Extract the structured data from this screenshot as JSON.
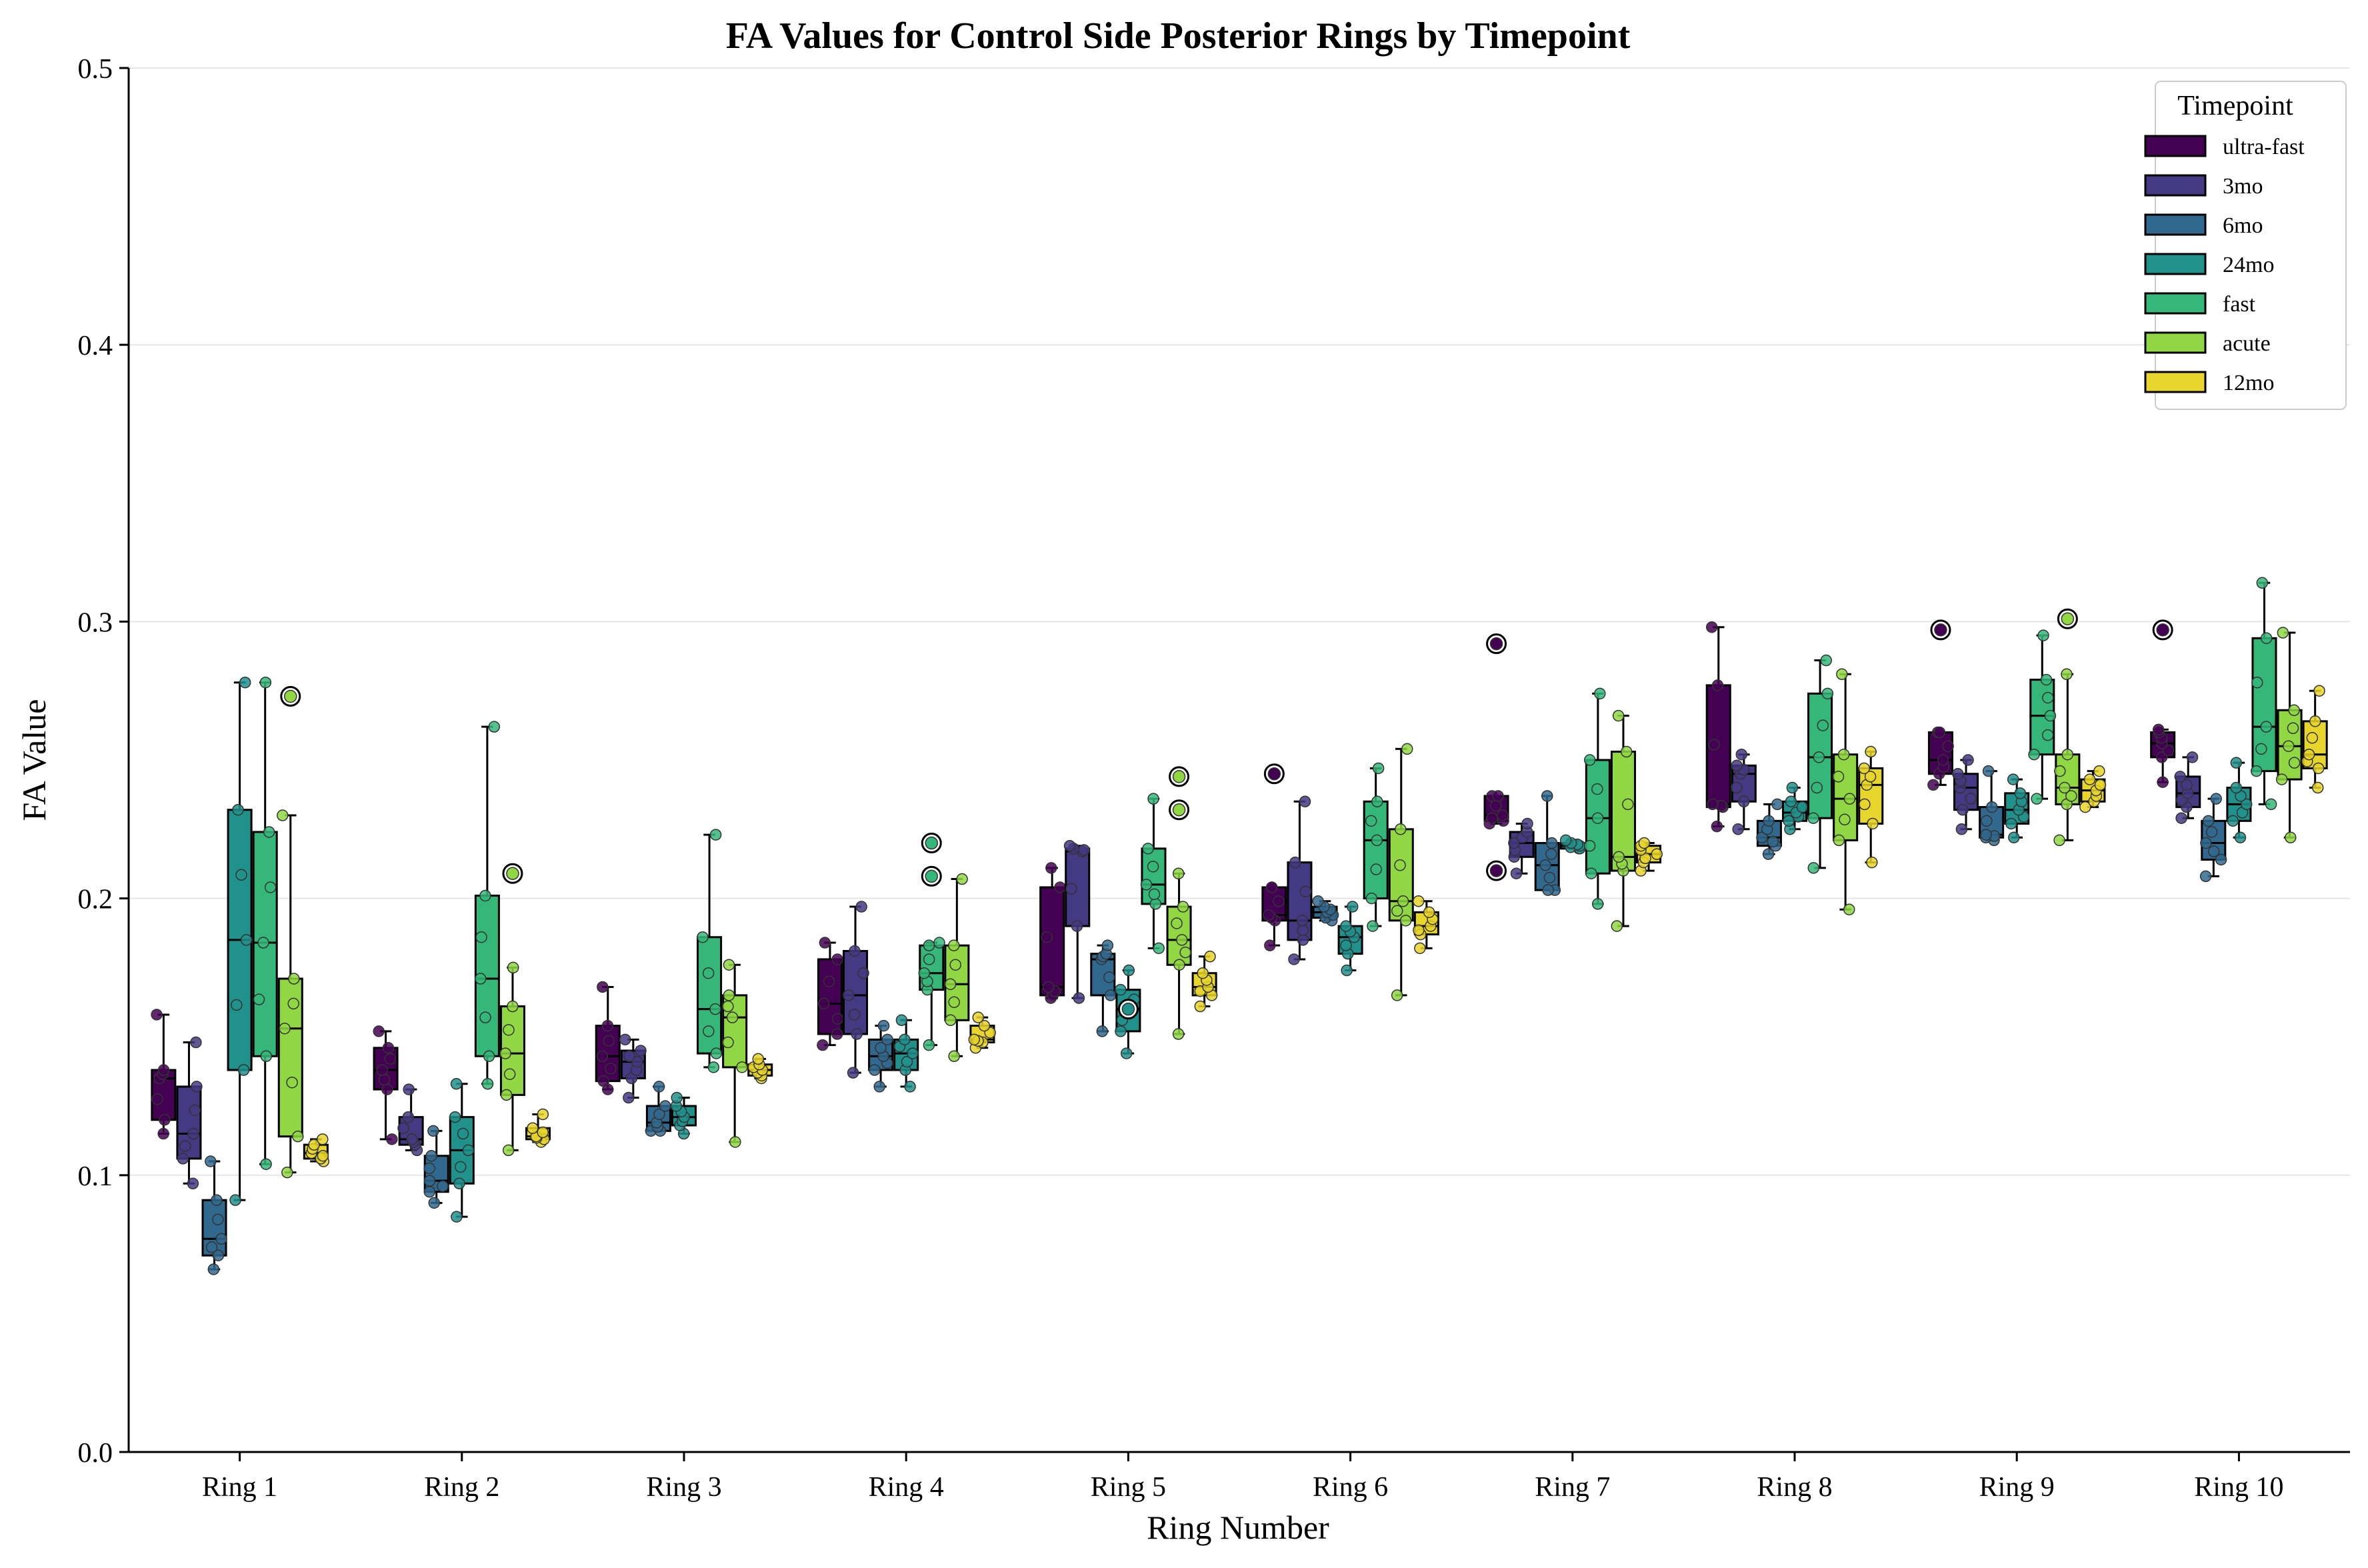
{
  "chart_data": {
    "type": "box",
    "title": "FA Values for Control Side Posterior Rings by Timepoint",
    "xlabel": "Ring Number",
    "ylabel": "FA Value",
    "ylim": [
      0,
      0.5
    ],
    "yticks": [
      "0.0",
      "0.1",
      "0.2",
      "0.3",
      "0.4",
      "0.5"
    ],
    "ytick_values": [
      0,
      0.1,
      0.2,
      0.3,
      0.4,
      0.5
    ],
    "grid": "horizontal",
    "categories": [
      "Ring 1",
      "Ring 2",
      "Ring 3",
      "Ring 4",
      "Ring 5",
      "Ring 6",
      "Ring 7",
      "Ring 8",
      "Ring 9",
      "Ring 10"
    ],
    "legend": {
      "title": "Timepoint",
      "placement": "top-right",
      "entries": [
        "ultra-fast",
        "3mo",
        "6mo",
        "24mo",
        "fast",
        "acute",
        "12mo"
      ]
    },
    "colors": [
      "#440154",
      "#443983",
      "#31688e",
      "#21918c",
      "#35b779",
      "#90d743",
      "#e8d52c"
    ],
    "series": [
      {
        "name": "ultra-fast",
        "boxes": [
          {
            "min": 0.115,
            "q1": 0.12,
            "median": 0.135,
            "q3": 0.138,
            "max": 0.158,
            "outliers": []
          },
          {
            "min": 0.113,
            "q1": 0.131,
            "median": 0.138,
            "q3": 0.146,
            "max": 0.152,
            "outliers": []
          },
          {
            "min": 0.131,
            "q1": 0.134,
            "median": 0.143,
            "q3": 0.154,
            "max": 0.168,
            "outliers": []
          },
          {
            "min": 0.147,
            "q1": 0.151,
            "median": 0.162,
            "q3": 0.178,
            "max": 0.184,
            "outliers": []
          },
          {
            "min": 0.164,
            "q1": 0.165,
            "median": 0.168,
            "q3": 0.204,
            "max": 0.211,
            "outliers": []
          },
          {
            "min": 0.183,
            "q1": 0.192,
            "median": 0.194,
            "q3": 0.204,
            "max": 0.204,
            "outliers": [
              0.245
            ]
          },
          {
            "min": 0.227,
            "q1": 0.228,
            "median": 0.23,
            "q3": 0.237,
            "max": 0.237,
            "outliers": [
              0.292,
              0.21
            ]
          },
          {
            "min": 0.226,
            "q1": 0.233,
            "median": 0.234,
            "q3": 0.277,
            "max": 0.298,
            "outliers": []
          },
          {
            "min": 0.241,
            "q1": 0.245,
            "median": 0.25,
            "q3": 0.26,
            "max": 0.26,
            "outliers": [
              0.297
            ]
          },
          {
            "min": 0.242,
            "q1": 0.251,
            "median": 0.256,
            "q3": 0.26,
            "max": 0.261,
            "outliers": [
              0.297
            ]
          }
        ]
      },
      {
        "name": "3mo",
        "boxes": [
          {
            "min": 0.097,
            "q1": 0.106,
            "median": 0.115,
            "q3": 0.132,
            "max": 0.148,
            "outliers": []
          },
          {
            "min": 0.109,
            "q1": 0.111,
            "median": 0.113,
            "q3": 0.121,
            "max": 0.131,
            "outliers": []
          },
          {
            "min": 0.128,
            "q1": 0.135,
            "median": 0.141,
            "q3": 0.145,
            "max": 0.149,
            "outliers": []
          },
          {
            "min": 0.137,
            "q1": 0.151,
            "median": 0.165,
            "q3": 0.181,
            "max": 0.197,
            "outliers": []
          },
          {
            "min": 0.164,
            "q1": 0.19,
            "median": 0.217,
            "q3": 0.218,
            "max": 0.219,
            "outliers": []
          },
          {
            "min": 0.178,
            "q1": 0.185,
            "median": 0.192,
            "q3": 0.213,
            "max": 0.235,
            "outliers": []
          },
          {
            "min": 0.209,
            "q1": 0.215,
            "median": 0.22,
            "q3": 0.224,
            "max": 0.227,
            "outliers": []
          },
          {
            "min": 0.225,
            "q1": 0.235,
            "median": 0.245,
            "q3": 0.248,
            "max": 0.252,
            "outliers": []
          },
          {
            "min": 0.225,
            "q1": 0.232,
            "median": 0.24,
            "q3": 0.245,
            "max": 0.25,
            "outliers": []
          },
          {
            "min": 0.229,
            "q1": 0.233,
            "median": 0.238,
            "q3": 0.244,
            "max": 0.251,
            "outliers": []
          }
        ]
      },
      {
        "name": "6mo",
        "boxes": [
          {
            "min": 0.066,
            "q1": 0.071,
            "median": 0.077,
            "q3": 0.091,
            "max": 0.105,
            "outliers": []
          },
          {
            "min": 0.09,
            "q1": 0.094,
            "median": 0.098,
            "q3": 0.107,
            "max": 0.116,
            "outliers": []
          },
          {
            "min": 0.116,
            "q1": 0.116,
            "median": 0.119,
            "q3": 0.125,
            "max": 0.132,
            "outliers": []
          },
          {
            "min": 0.132,
            "q1": 0.138,
            "median": 0.143,
            "q3": 0.149,
            "max": 0.154,
            "outliers": []
          },
          {
            "min": 0.152,
            "q1": 0.165,
            "median": 0.178,
            "q3": 0.18,
            "max": 0.183,
            "outliers": []
          },
          {
            "min": 0.192,
            "q1": 0.193,
            "median": 0.195,
            "q3": 0.197,
            "max": 0.199,
            "outliers": []
          },
          {
            "min": 0.203,
            "q1": 0.203,
            "median": 0.212,
            "q3": 0.22,
            "max": 0.237,
            "outliers": []
          },
          {
            "min": 0.216,
            "q1": 0.219,
            "median": 0.222,
            "q3": 0.228,
            "max": 0.234,
            "outliers": []
          },
          {
            "min": 0.221,
            "q1": 0.222,
            "median": 0.223,
            "q3": 0.233,
            "max": 0.246,
            "outliers": []
          },
          {
            "min": 0.208,
            "q1": 0.214,
            "median": 0.22,
            "q3": 0.228,
            "max": 0.236,
            "outliers": []
          }
        ]
      },
      {
        "name": "24mo",
        "boxes": [
          {
            "min": 0.091,
            "q1": 0.138,
            "median": 0.185,
            "q3": 0.232,
            "max": 0.278,
            "outliers": []
          },
          {
            "min": 0.085,
            "q1": 0.097,
            "median": 0.109,
            "q3": 0.121,
            "max": 0.133,
            "outliers": []
          },
          {
            "min": 0.115,
            "q1": 0.118,
            "median": 0.121,
            "q3": 0.125,
            "max": 0.128,
            "outliers": []
          },
          {
            "min": 0.132,
            "q1": 0.138,
            "median": 0.144,
            "q3": 0.149,
            "max": 0.156,
            "outliers": []
          },
          {
            "min": 0.144,
            "q1": 0.152,
            "median": 0.16,
            "q3": 0.167,
            "max": 0.174,
            "outliers": [
              0.16
            ]
          },
          {
            "min": 0.174,
            "q1": 0.18,
            "median": 0.186,
            "q3": 0.19,
            "max": 0.197,
            "outliers": []
          },
          {
            "min": 0.218,
            "q1": 0.218,
            "median": 0.219,
            "q3": 0.22,
            "max": 0.221,
            "outliers": []
          },
          {
            "min": 0.225,
            "q1": 0.228,
            "median": 0.231,
            "q3": 0.235,
            "max": 0.24,
            "outliers": []
          },
          {
            "min": 0.222,
            "q1": 0.227,
            "median": 0.232,
            "q3": 0.238,
            "max": 0.243,
            "outliers": []
          },
          {
            "min": 0.222,
            "q1": 0.228,
            "median": 0.234,
            "q3": 0.24,
            "max": 0.249,
            "outliers": []
          }
        ]
      },
      {
        "name": "fast",
        "boxes": [
          {
            "min": 0.104,
            "q1": 0.143,
            "median": 0.184,
            "q3": 0.224,
            "max": 0.278,
            "outliers": []
          },
          {
            "min": 0.133,
            "q1": 0.143,
            "median": 0.171,
            "q3": 0.201,
            "max": 0.262,
            "outliers": []
          },
          {
            "min": 0.139,
            "q1": 0.144,
            "median": 0.16,
            "q3": 0.186,
            "max": 0.223,
            "outliers": []
          },
          {
            "min": 0.147,
            "q1": 0.167,
            "median": 0.173,
            "q3": 0.183,
            "max": 0.184,
            "outliers": [
              0.22,
              0.208
            ]
          },
          {
            "min": 0.182,
            "q1": 0.198,
            "median": 0.205,
            "q3": 0.218,
            "max": 0.236,
            "outliers": []
          },
          {
            "min": 0.19,
            "q1": 0.2,
            "median": 0.221,
            "q3": 0.235,
            "max": 0.247,
            "outliers": []
          },
          {
            "min": 0.198,
            "q1": 0.209,
            "median": 0.229,
            "q3": 0.25,
            "max": 0.274,
            "outliers": []
          },
          {
            "min": 0.211,
            "q1": 0.229,
            "median": 0.251,
            "q3": 0.274,
            "max": 0.286,
            "outliers": []
          },
          {
            "min": 0.236,
            "q1": 0.252,
            "median": 0.266,
            "q3": 0.279,
            "max": 0.295,
            "outliers": []
          },
          {
            "min": 0.234,
            "q1": 0.246,
            "median": 0.262,
            "q3": 0.294,
            "max": 0.314,
            "outliers": []
          }
        ]
      },
      {
        "name": "acute",
        "boxes": [
          {
            "min": 0.101,
            "q1": 0.114,
            "median": 0.153,
            "q3": 0.171,
            "max": 0.23,
            "outliers": [
              0.273
            ]
          },
          {
            "min": 0.109,
            "q1": 0.129,
            "median": 0.144,
            "q3": 0.161,
            "max": 0.175,
            "outliers": [
              0.209
            ]
          },
          {
            "min": 0.112,
            "q1": 0.139,
            "median": 0.157,
            "q3": 0.165,
            "max": 0.176,
            "outliers": []
          },
          {
            "min": 0.143,
            "q1": 0.156,
            "median": 0.169,
            "q3": 0.183,
            "max": 0.207,
            "outliers": []
          },
          {
            "min": 0.151,
            "q1": 0.176,
            "median": 0.185,
            "q3": 0.197,
            "max": 0.209,
            "outliers": [
              0.244,
              0.232
            ]
          },
          {
            "min": 0.165,
            "q1": 0.192,
            "median": 0.199,
            "q3": 0.225,
            "max": 0.254,
            "outliers": []
          },
          {
            "min": 0.19,
            "q1": 0.21,
            "median": 0.215,
            "q3": 0.253,
            "max": 0.266,
            "outliers": []
          },
          {
            "min": 0.196,
            "q1": 0.221,
            "median": 0.236,
            "q3": 0.252,
            "max": 0.281,
            "outliers": []
          },
          {
            "min": 0.221,
            "q1": 0.234,
            "median": 0.24,
            "q3": 0.252,
            "max": 0.281,
            "outliers": [
              0.301
            ]
          },
          {
            "min": 0.222,
            "q1": 0.243,
            "median": 0.255,
            "q3": 0.268,
            "max": 0.296,
            "outliers": []
          }
        ]
      },
      {
        "name": "12mo",
        "boxes": [
          {
            "min": 0.105,
            "q1": 0.106,
            "median": 0.108,
            "q3": 0.111,
            "max": 0.113,
            "outliers": []
          },
          {
            "min": 0.112,
            "q1": 0.113,
            "median": 0.114,
            "q3": 0.117,
            "max": 0.122,
            "outliers": []
          },
          {
            "min": 0.135,
            "q1": 0.136,
            "median": 0.138,
            "q3": 0.14,
            "max": 0.142,
            "outliers": []
          },
          {
            "min": 0.146,
            "q1": 0.148,
            "median": 0.149,
            "q3": 0.154,
            "max": 0.157,
            "outliers": []
          },
          {
            "min": 0.161,
            "q1": 0.165,
            "median": 0.168,
            "q3": 0.173,
            "max": 0.179,
            "outliers": []
          },
          {
            "min": 0.182,
            "q1": 0.187,
            "median": 0.19,
            "q3": 0.195,
            "max": 0.199,
            "outliers": []
          },
          {
            "min": 0.21,
            "q1": 0.213,
            "median": 0.216,
            "q3": 0.219,
            "max": 0.22,
            "outliers": []
          },
          {
            "min": 0.213,
            "q1": 0.227,
            "median": 0.241,
            "q3": 0.247,
            "max": 0.253,
            "outliers": []
          },
          {
            "min": 0.233,
            "q1": 0.235,
            "median": 0.239,
            "q3": 0.243,
            "max": 0.246,
            "outliers": []
          },
          {
            "min": 0.24,
            "q1": 0.247,
            "median": 0.252,
            "q3": 0.264,
            "max": 0.275,
            "outliers": []
          }
        ]
      }
    ]
  }
}
